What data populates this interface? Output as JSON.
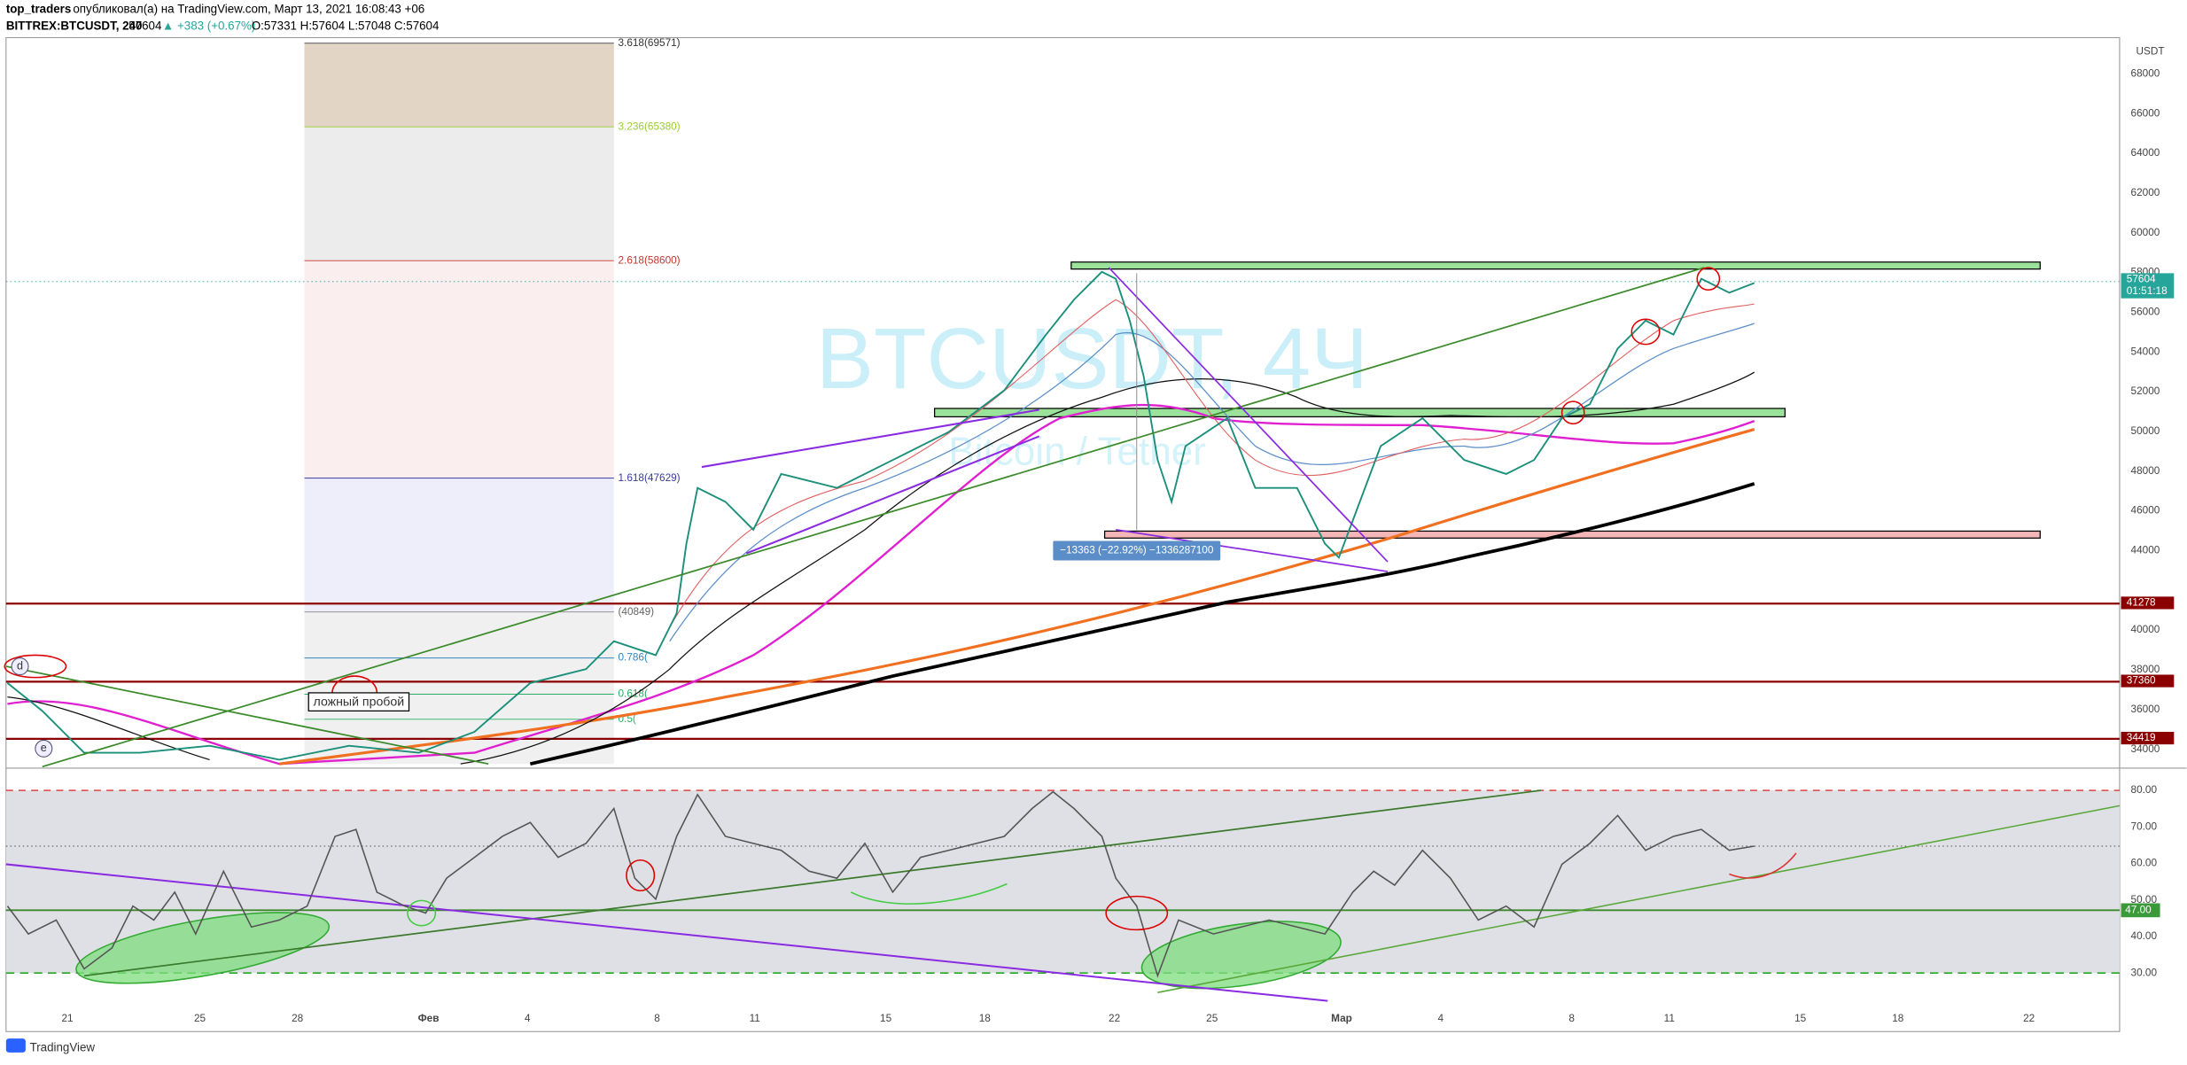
{
  "header": {
    "author": "top_traders",
    "published": "опубликовал(а) на TradingView.com, Март 13, 2021 16:08:43 +06",
    "symbol": "BITTREX:BTCUSDT, 240",
    "last": "57604",
    "change": "▲ +383 (+0.67%)",
    "ohlc": "O:57331 H:57604 L:57048 C:57604"
  },
  "watermark": {
    "symbol": "BTCUSDT, 4Ч",
    "sub": "Bitcoin / Tether"
  },
  "price_axis": {
    "currency": "USDT",
    "labels": [
      "68000",
      "66000",
      "64000",
      "62000",
      "60000",
      "58000",
      "56000",
      "54000",
      "52000",
      "50000",
      "48000",
      "46000",
      "44000",
      "40000",
      "38000",
      "36000",
      "34000"
    ]
  },
  "badges": [
    {
      "label": "57604",
      "sub": "01:51:18",
      "color": "#26a69a"
    },
    {
      "label": "41278",
      "color": "#8b0000"
    },
    {
      "label": "37360",
      "color": "#8b0000"
    },
    {
      "label": "34419",
      "color": "#8b0000"
    }
  ],
  "fib_levels": [
    "3.618(69571)",
    "3.236(65380)",
    "2.618(58600)",
    "1.618(47629)",
    "(40849)",
    "0.786(",
    "0.618(",
    "0.5("
  ],
  "annotations": {
    "false_breakout": "ложный пробой",
    "measure": "−13363 (−22.92%) −1336287100",
    "d_marker": "d",
    "e_marker": "e"
  },
  "rsi_axis": {
    "labels": [
      "80.00",
      "70.00",
      "60.00",
      "50.00",
      "40.00",
      "30.00"
    ],
    "level_badge": "47.00"
  },
  "time_axis": {
    "labels": [
      "21",
      "25",
      "28",
      "Фев",
      "4",
      "8",
      "11",
      "15",
      "18",
      "22",
      "25",
      "Мар",
      "4",
      "8",
      "11",
      "15",
      "18",
      "22"
    ]
  },
  "footer": {
    "brand": "TradingView"
  }
}
